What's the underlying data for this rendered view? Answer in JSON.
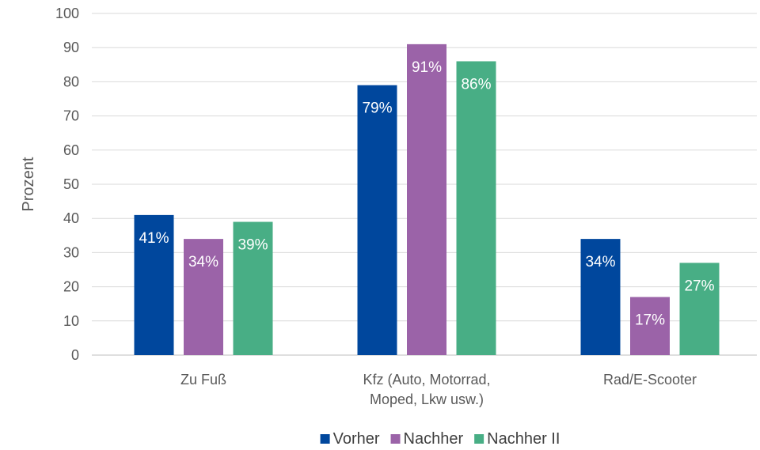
{
  "chart_data": {
    "type": "bar",
    "title": "",
    "xlabel": "",
    "ylabel": "Prozent",
    "ylim": [
      0,
      100
    ],
    "yticks": [
      0,
      10,
      20,
      30,
      40,
      50,
      60,
      70,
      80,
      90,
      100
    ],
    "grid": true,
    "legend_position": "bottom",
    "categories": [
      [
        "Zu Fuß"
      ],
      [
        "Kfz (Auto, Motorrad,",
        "Moped, Lkw usw.)"
      ],
      [
        "Rad/E-Scooter"
      ]
    ],
    "series": [
      {
        "name": "Vorher",
        "color": "#00479D",
        "values": [
          41,
          79,
          34
        ],
        "labels": [
          "41%",
          "79%",
          "34%"
        ]
      },
      {
        "name": "Nachher",
        "color": "#9B63A8",
        "values": [
          34,
          91,
          17
        ],
        "labels": [
          "34%",
          "91%",
          "17%"
        ]
      },
      {
        "name": "Nachher II",
        "color": "#48AE85",
        "values": [
          39,
          86,
          27
        ],
        "labels": [
          "39%",
          "86%",
          "27%"
        ]
      }
    ]
  }
}
